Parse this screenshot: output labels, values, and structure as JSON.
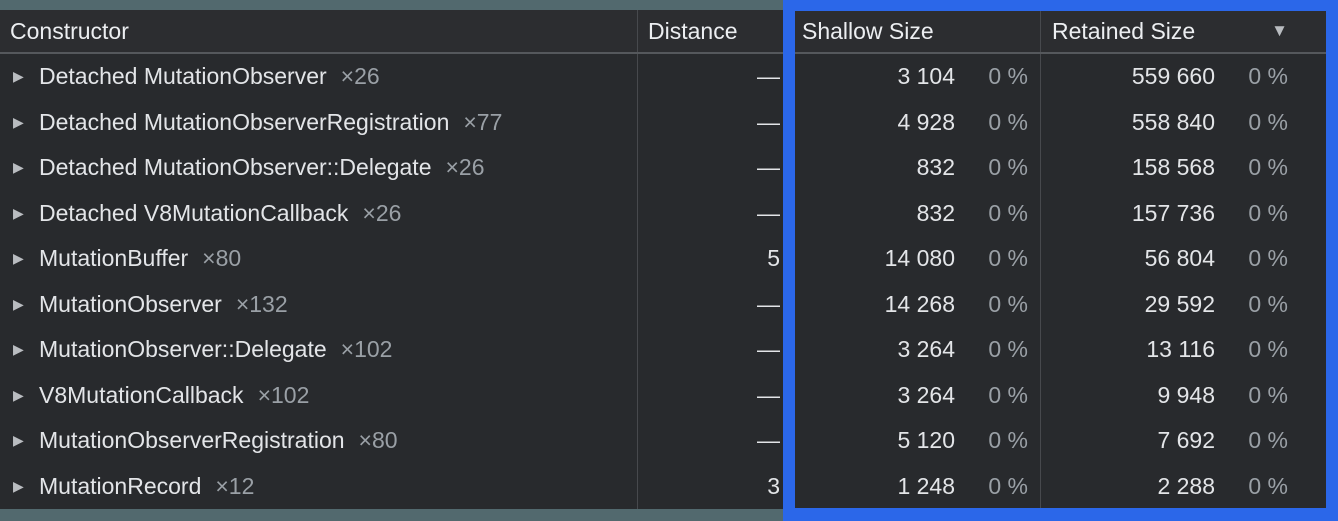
{
  "colors": {
    "highlight_blue": "#2b67e9",
    "frame_teal": "#52696e",
    "table_background": "#282a2d",
    "muted_text": "#9aa0a6"
  },
  "table": {
    "expander_icon": "▶",
    "sort_icon": "▼",
    "sorted_column": "Retained Size",
    "sort_direction": "descending",
    "columns": [
      {
        "key": "constructor",
        "label": "Constructor"
      },
      {
        "key": "distance",
        "label": "Distance"
      },
      {
        "key": "shallow",
        "label": "Shallow Size"
      },
      {
        "key": "retained",
        "label": "Retained Size"
      }
    ],
    "rows": [
      {
        "name": "Detached MutationObserver",
        "count": "×26",
        "distance": "—",
        "shallow": "3 104",
        "shallow_pct": "0 %",
        "retained": "559 660",
        "retained_pct": "0 %"
      },
      {
        "name": "Detached MutationObserverRegistration",
        "count": "×77",
        "distance": "—",
        "shallow": "4 928",
        "shallow_pct": "0 %",
        "retained": "558 840",
        "retained_pct": "0 %"
      },
      {
        "name": "Detached MutationObserver::Delegate",
        "count": "×26",
        "distance": "—",
        "shallow": "832",
        "shallow_pct": "0 %",
        "retained": "158 568",
        "retained_pct": "0 %"
      },
      {
        "name": "Detached V8MutationCallback",
        "count": "×26",
        "distance": "—",
        "shallow": "832",
        "shallow_pct": "0 %",
        "retained": "157 736",
        "retained_pct": "0 %"
      },
      {
        "name": "MutationBuffer",
        "count": "×80",
        "distance": "5",
        "shallow": "14 080",
        "shallow_pct": "0 %",
        "retained": "56 804",
        "retained_pct": "0 %"
      },
      {
        "name": "MutationObserver",
        "count": "×132",
        "distance": "—",
        "shallow": "14 268",
        "shallow_pct": "0 %",
        "retained": "29 592",
        "retained_pct": "0 %"
      },
      {
        "name": "MutationObserver::Delegate",
        "count": "×102",
        "distance": "—",
        "shallow": "3 264",
        "shallow_pct": "0 %",
        "retained": "13 116",
        "retained_pct": "0 %"
      },
      {
        "name": "V8MutationCallback",
        "count": "×102",
        "distance": "—",
        "shallow": "3 264",
        "shallow_pct": "0 %",
        "retained": "9 948",
        "retained_pct": "0 %"
      },
      {
        "name": "MutationObserverRegistration",
        "count": "×80",
        "distance": "—",
        "shallow": "5 120",
        "shallow_pct": "0 %",
        "retained": "7 692",
        "retained_pct": "0 %"
      },
      {
        "name": "MutationRecord",
        "count": "×12",
        "distance": "3",
        "shallow": "1 248",
        "shallow_pct": "0 %",
        "retained": "2 288",
        "retained_pct": "0 %"
      }
    ]
  }
}
